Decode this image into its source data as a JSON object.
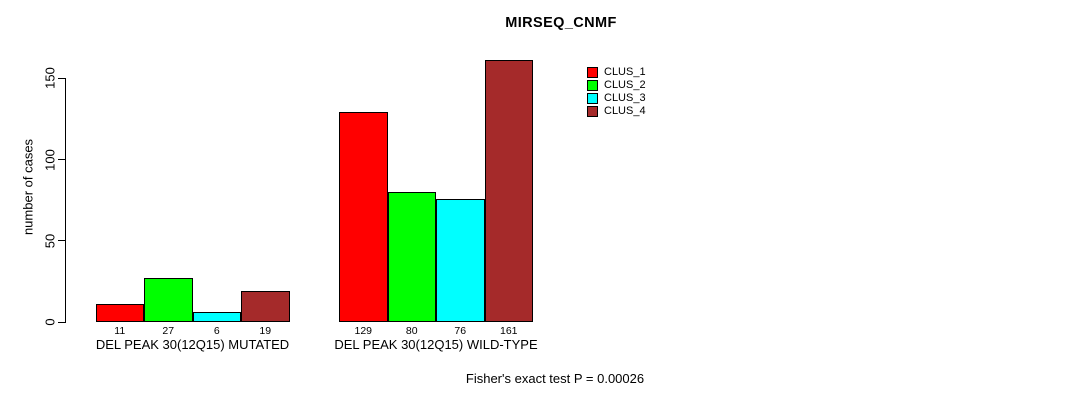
{
  "chart_data": {
    "type": "bar",
    "title": "MIRSEQ_CNMF",
    "ylabel": "number of cases",
    "xlabel": "",
    "categories": [
      "DEL PEAK 30(12Q15) MUTATED",
      "DEL PEAK 30(12Q15) WILD-TYPE"
    ],
    "series": [
      {
        "name": "CLUS_1",
        "color": "#ff0000",
        "values": [
          11,
          129
        ]
      },
      {
        "name": "CLUS_2",
        "color": "#00ff00",
        "values": [
          27,
          80
        ]
      },
      {
        "name": "CLUS_3",
        "color": "#00ffff",
        "values": [
          6,
          76
        ]
      },
      {
        "name": "CLUS_4",
        "color": "#a52a2a",
        "values": [
          19,
          161
        ]
      }
    ],
    "yticks": [
      0,
      50,
      100,
      150
    ],
    "ylim": [
      0,
      150
    ],
    "show_bar_value_labels": true,
    "legend_position": "top-right",
    "grid": false
  },
  "annotation": "Fisher's exact test P = 0.00026"
}
